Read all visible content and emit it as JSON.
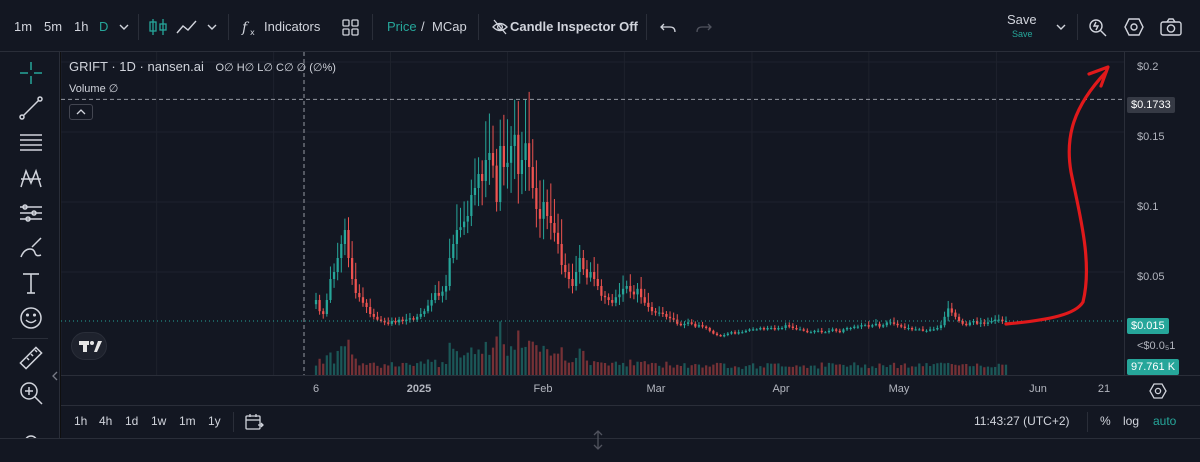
{
  "toolbar": {
    "intervals": [
      "1m",
      "5m",
      "1h",
      "D"
    ],
    "indicators_label": "Indicators",
    "price_label": "Price",
    "slash_label": "/",
    "mcap_label": "MCap",
    "candle_inspector_label": "Candle Inspector Off",
    "save_label": "Save",
    "save_sub_label": "Save"
  },
  "legend": {
    "symbol_line": "GRIFT · 1D · nansen.ai",
    "ohlc_line": "O∅ H∅ L∅ C∅ ∅ (∅%)",
    "volume_line": "Volume  ∅"
  },
  "price_axis": {
    "ticks": [
      "$0.2",
      "$0.15",
      "$0.1",
      "$0.05"
    ],
    "crosshair_label": "$0.1733",
    "last_price_label": "$0.015",
    "small_label": "<$0.0₅1",
    "volume_label": "97.761 K"
  },
  "time_axis": {
    "labels": [
      "6",
      "2025",
      "Feb",
      "Mar",
      "Apr",
      "May",
      "Jun",
      "21"
    ]
  },
  "bottom_bar": {
    "ranges": [
      "1h",
      "4h",
      "1d",
      "1w",
      "1m",
      "1y"
    ],
    "clock": "11:43:27 (UTC+2)",
    "percent_label": "%",
    "log_label": "log",
    "auto_label": "auto"
  },
  "colors": {
    "up": "#26a69a",
    "down": "#ef5350",
    "annotation": "#e0191b",
    "background": "#131722"
  },
  "chart_data": {
    "type": "candlestick",
    "title": "GRIFT · 1D · nansen.ai",
    "ylim": [
      0,
      0.21
    ],
    "y_ticks": [
      0.05,
      0.1,
      0.15,
      0.2
    ],
    "crosshair_price": 0.1733,
    "last_price": 0.015,
    "x_labels": [
      "6",
      "2025",
      "Feb",
      "Mar",
      "Apr",
      "May",
      "Jun",
      "21"
    ],
    "grid": true,
    "close_series": [
      0.03,
      0.022,
      0.02,
      0.03,
      0.045,
      0.05,
      0.06,
      0.07,
      0.08,
      0.06,
      0.045,
      0.035,
      0.032,
      0.028,
      0.025,
      0.02,
      0.018,
      0.016,
      0.015,
      0.014,
      0.013,
      0.015,
      0.014,
      0.016,
      0.015,
      0.016,
      0.017,
      0.016,
      0.018,
      0.02,
      0.022,
      0.026,
      0.03,
      0.035,
      0.033,
      0.036,
      0.04,
      0.06,
      0.07,
      0.08,
      0.082,
      0.086,
      0.09,
      0.105,
      0.11,
      0.12,
      0.115,
      0.13,
      0.135,
      0.126,
      0.1,
      0.14,
      0.125,
      0.128,
      0.14,
      0.148,
      0.12,
      0.13,
      0.142,
      0.125,
      0.11,
      0.095,
      0.088,
      0.1,
      0.09,
      0.085,
      0.078,
      0.07,
      0.055,
      0.05,
      0.045,
      0.04,
      0.05,
      0.06,
      0.052,
      0.046,
      0.05,
      0.045,
      0.04,
      0.033,
      0.032,
      0.03,
      0.028,
      0.032,
      0.034,
      0.038,
      0.04,
      0.036,
      0.034,
      0.038,
      0.032,
      0.028,
      0.025,
      0.022,
      0.021,
      0.021,
      0.02,
      0.018,
      0.017,
      0.016,
      0.013,
      0.012,
      0.013,
      0.014,
      0.013,
      0.011,
      0.012,
      0.011,
      0.01,
      0.008,
      0.006,
      0.005,
      0.004,
      0.005,
      0.006,
      0.007,
      0.006,
      0.007,
      0.007,
      0.008,
      0.009,
      0.009,
      0.009,
      0.01,
      0.009,
      0.01,
      0.01,
      0.009,
      0.01,
      0.01,
      0.012,
      0.011,
      0.01,
      0.009,
      0.009,
      0.008,
      0.007,
      0.007,
      0.008,
      0.008,
      0.007,
      0.007,
      0.008,
      0.009,
      0.008,
      0.007,
      0.009,
      0.01,
      0.01,
      0.011,
      0.011,
      0.012,
      0.012,
      0.011,
      0.012,
      0.013,
      0.011,
      0.012,
      0.014,
      0.014,
      0.013,
      0.012,
      0.011,
      0.01,
      0.01,
      0.009,
      0.009,
      0.009,
      0.008,
      0.008,
      0.009,
      0.009,
      0.01,
      0.012,
      0.018,
      0.024,
      0.021,
      0.018,
      0.015,
      0.013,
      0.012,
      0.014,
      0.015,
      0.013,
      0.014,
      0.013,
      0.014,
      0.015,
      0.016,
      0.016,
      0.015,
      0.015
    ]
  }
}
